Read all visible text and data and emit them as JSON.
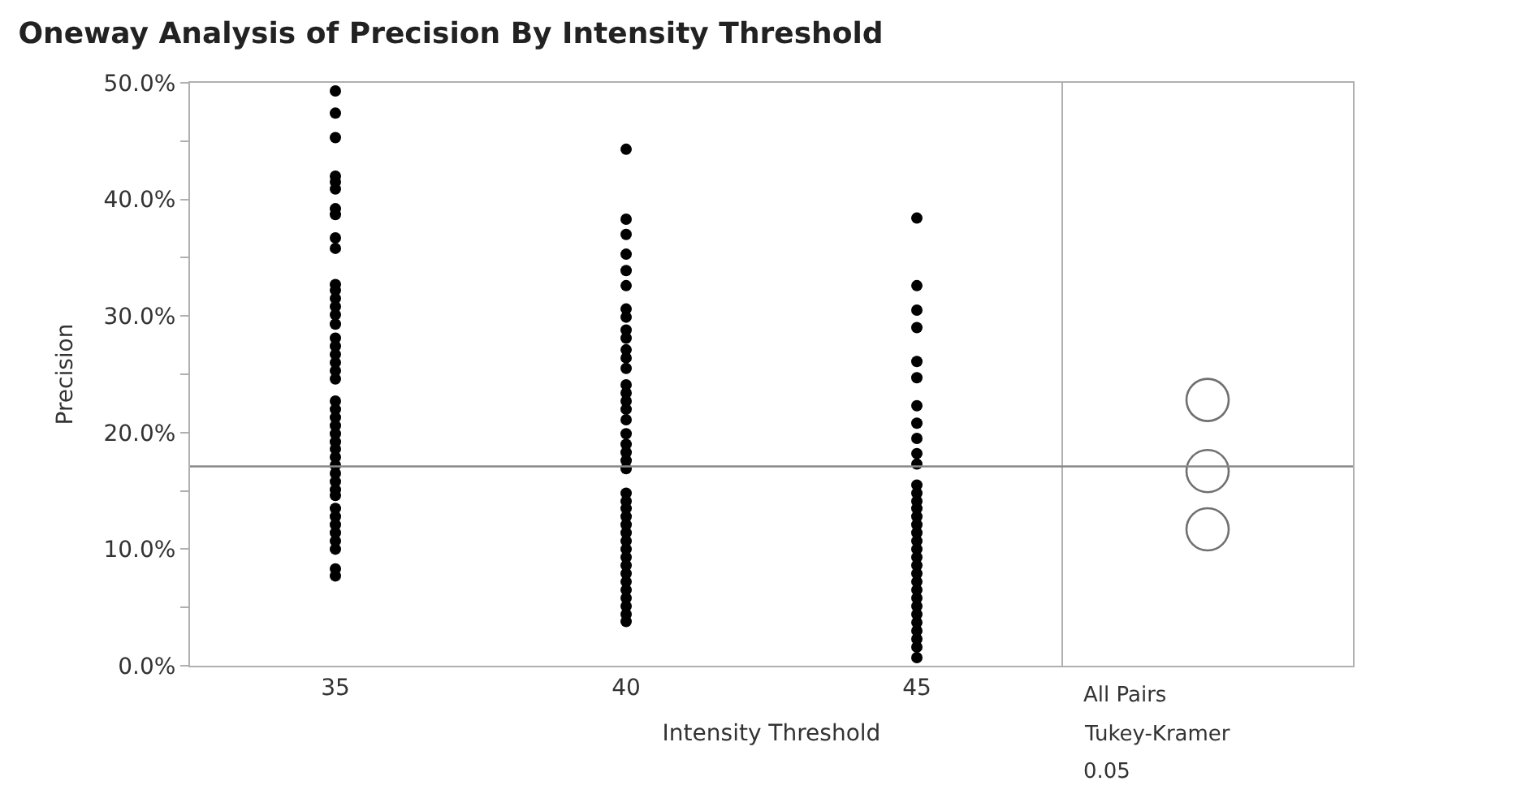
{
  "chart_data": {
    "type": "scatter",
    "title": "Oneway Analysis of Precision By Intensity Threshold",
    "xlabel": "Intensity Threshold",
    "ylabel": "Precision",
    "categories": [
      "35",
      "40",
      "45",
      null
    ],
    "series": [
      {
        "color": "#000000",
        "x": [
          "35",
          "35",
          "35",
          "35",
          "35",
          "35",
          "35",
          "35",
          "35",
          "35",
          "35",
          "35",
          "35",
          "35",
          "35",
          "35",
          "35",
          "35",
          "35",
          "35",
          "35",
          "35",
          "35",
          "35",
          "35",
          "35",
          "35",
          "35",
          "35",
          "35",
          "35",
          "35",
          "35",
          "35",
          "35",
          "35",
          "35",
          "35",
          "35",
          "35",
          "35",
          "35",
          "35"
        ],
        "values": [
          49.3,
          47.4,
          45.3,
          42.0,
          41.5,
          40.9,
          39.2,
          38.7,
          36.7,
          35.8,
          32.7,
          32.2,
          31.5,
          30.8,
          30.1,
          29.3,
          28.1,
          27.4,
          26.7,
          26.0,
          25.3,
          24.6,
          22.7,
          22.0,
          21.3,
          20.6,
          19.9,
          19.2,
          18.6,
          17.9,
          17.2,
          16.5,
          15.8,
          15.1,
          14.6,
          13.5,
          12.8,
          12.1,
          11.4,
          10.7,
          10.0,
          8.3,
          7.7
        ]
      },
      {
        "color": "#000000",
        "x": [
          "40",
          "40",
          "40",
          "40",
          "40",
          "40",
          "40",
          "40",
          "40",
          "40",
          "40",
          "40",
          "40",
          "40",
          "40",
          "40",
          "40",
          "40",
          "40",
          "40",
          "40",
          "40",
          "40",
          "40",
          "40",
          "40",
          "40",
          "40",
          "40",
          "40",
          "40",
          "40",
          "40",
          "40",
          "40",
          "40",
          "40",
          "40",
          "40",
          "40"
        ],
        "values": [
          44.3,
          38.3,
          37.0,
          35.3,
          33.9,
          32.6,
          30.6,
          29.9,
          28.8,
          28.1,
          27.1,
          26.4,
          25.5,
          24.1,
          23.4,
          22.7,
          22.0,
          21.1,
          19.9,
          19.0,
          18.3,
          17.6,
          16.9,
          14.8,
          14.1,
          13.5,
          12.8,
          12.1,
          11.4,
          10.7,
          10.0,
          9.3,
          8.6,
          7.9,
          7.2,
          6.5,
          5.8,
          5.1,
          4.4,
          3.8
        ]
      },
      {
        "color": "#000000",
        "x": [
          "45",
          "45",
          "45",
          "45",
          "45",
          "45",
          "45",
          "45",
          "45",
          "45",
          "45",
          "45",
          "45",
          "45",
          "45",
          "45",
          "45",
          "45",
          "45",
          "45",
          "45",
          "45",
          "45",
          "45",
          "45",
          "45",
          "45",
          "45",
          "45",
          "45",
          "45",
          "45",
          "45"
        ],
        "values": [
          38.4,
          32.6,
          30.5,
          29.0,
          26.1,
          24.7,
          22.3,
          20.8,
          19.5,
          18.2,
          17.3,
          15.5,
          14.8,
          14.1,
          13.5,
          12.8,
          12.1,
          11.4,
          10.7,
          10.0,
          9.3,
          8.6,
          7.9,
          7.2,
          6.5,
          5.8,
          5.1,
          4.4,
          3.7,
          3.0,
          2.3,
          1.6,
          0.7
        ]
      },
      {
        "type": "bubble",
        "color": "#333333",
        "values": [
          null,
          null,
          null,
          22.8
        ],
        "sizes": [
          null,
          null,
          null,
          1
        ]
      },
      {
        "type": "bubble",
        "color": "#333333",
        "values": [
          null,
          null,
          null,
          16.7
        ],
        "sizes": [
          null,
          null,
          null,
          1
        ]
      },
      {
        "type": "bubble",
        "color": "#333333",
        "values": [
          null,
          null,
          null,
          11.7
        ],
        "sizes": [
          null,
          null,
          null,
          1
        ]
      }
    ],
    "marker": "circle",
    "ylim": [
      0,
      50
    ],
    "yticks": [
      {
        "value": 0,
        "label": "0.0%"
      },
      {
        "value": 5,
        "label": null
      },
      {
        "value": 10,
        "label": "10.0%"
      },
      {
        "value": 15,
        "label": null
      },
      {
        "value": 20,
        "label": "20.0%"
      },
      {
        "value": 25,
        "label": null
      },
      {
        "value": 30,
        "label": "30.0%"
      },
      {
        "value": 35,
        "label": null
      },
      {
        "value": 40,
        "label": "40.0%"
      },
      {
        "value": 45,
        "label": null
      },
      {
        "value": 50,
        "label": "50.0%"
      }
    ],
    "ref_lines": [
      {
        "axis": "y",
        "value": 17.1,
        "color": "#888888"
      }
    ],
    "annotations": [
      "All Pairs",
      "Tukey-Kramer",
      "0.05"
    ]
  }
}
